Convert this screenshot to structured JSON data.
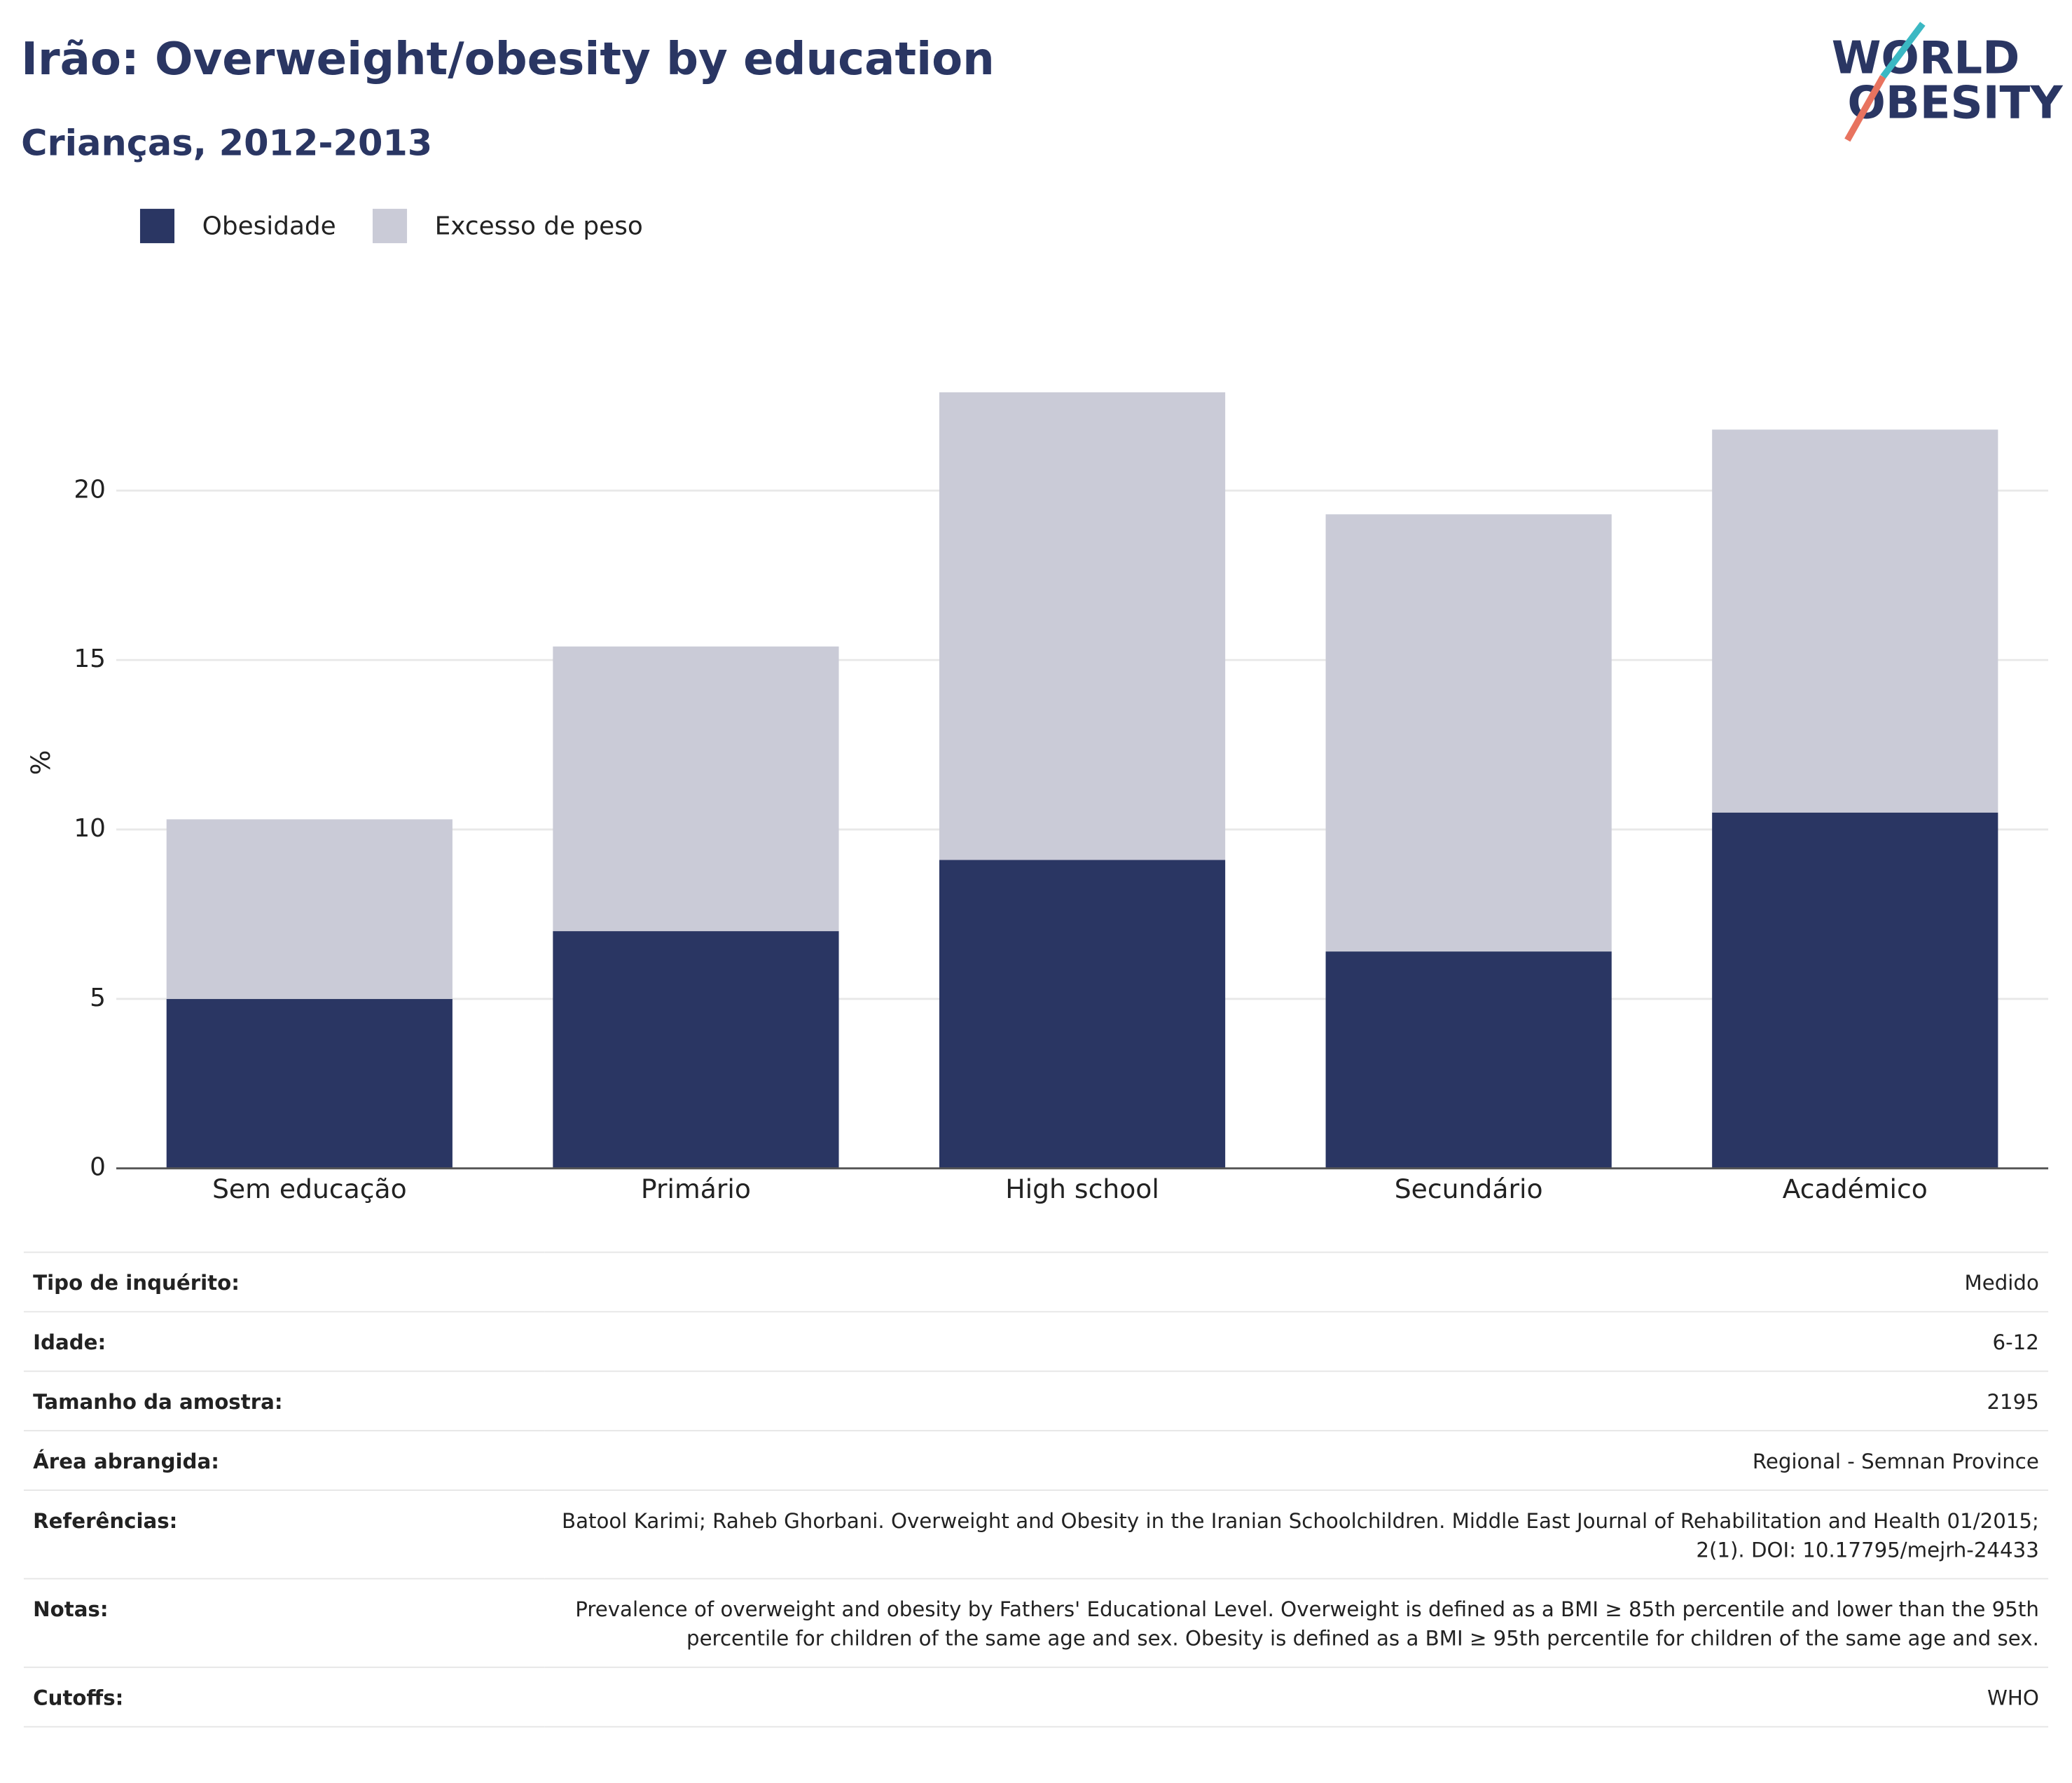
{
  "chart_data": {
    "type": "stacked_bar",
    "title": "Irão: Overweight/obesity by education",
    "subtitle": "Crianças, 2012-2013",
    "ylabel": "%",
    "categories": [
      "Sem educação",
      "Primário",
      "High school",
      "Secundário",
      "Académico"
    ],
    "series": [
      {
        "name": "Obesidade",
        "color": "#2a3663",
        "values": [
          5.0,
          7.0,
          9.1,
          6.4,
          10.5
        ]
      },
      {
        "name": "Excesso de peso",
        "color": "#cacbd7",
        "values": [
          5.3,
          8.4,
          13.8,
          12.9,
          11.3
        ]
      }
    ],
    "ylim": [
      0,
      25
    ],
    "yticks": [
      0,
      5,
      10,
      15,
      20
    ],
    "grid": true
  },
  "logo": {
    "line1": "WORLD",
    "line2": "OBESITY"
  },
  "info": [
    {
      "label": "Tipo de inquérito:",
      "value": "Medido"
    },
    {
      "label": "Idade:",
      "value": "6-12"
    },
    {
      "label": "Tamanho da amostra:",
      "value": "2195"
    },
    {
      "label": "Área abrangida:",
      "value": "Regional - Semnan Province"
    },
    {
      "label": "Referências:",
      "value": "Batool Karimi; Raheb Ghorbani. Overweight and Obesity in the Iranian Schoolchildren. Middle East Journal of Rehabilitation and Health 01/2015; 2(1). DOI: 10.17795/mejrh-24433"
    },
    {
      "label": "Notas:",
      "value": "Prevalence of overweight and obesity by Fathers' Educational Level. Overweight is defined as a BMI ≥ 85th percentile and lower than the 95th percentile for children of the same age and sex. Obesity is defined as a BMI ≥ 95th percentile for children of the same age and sex."
    },
    {
      "label": "Cutoffs:",
      "value": "WHO"
    }
  ]
}
